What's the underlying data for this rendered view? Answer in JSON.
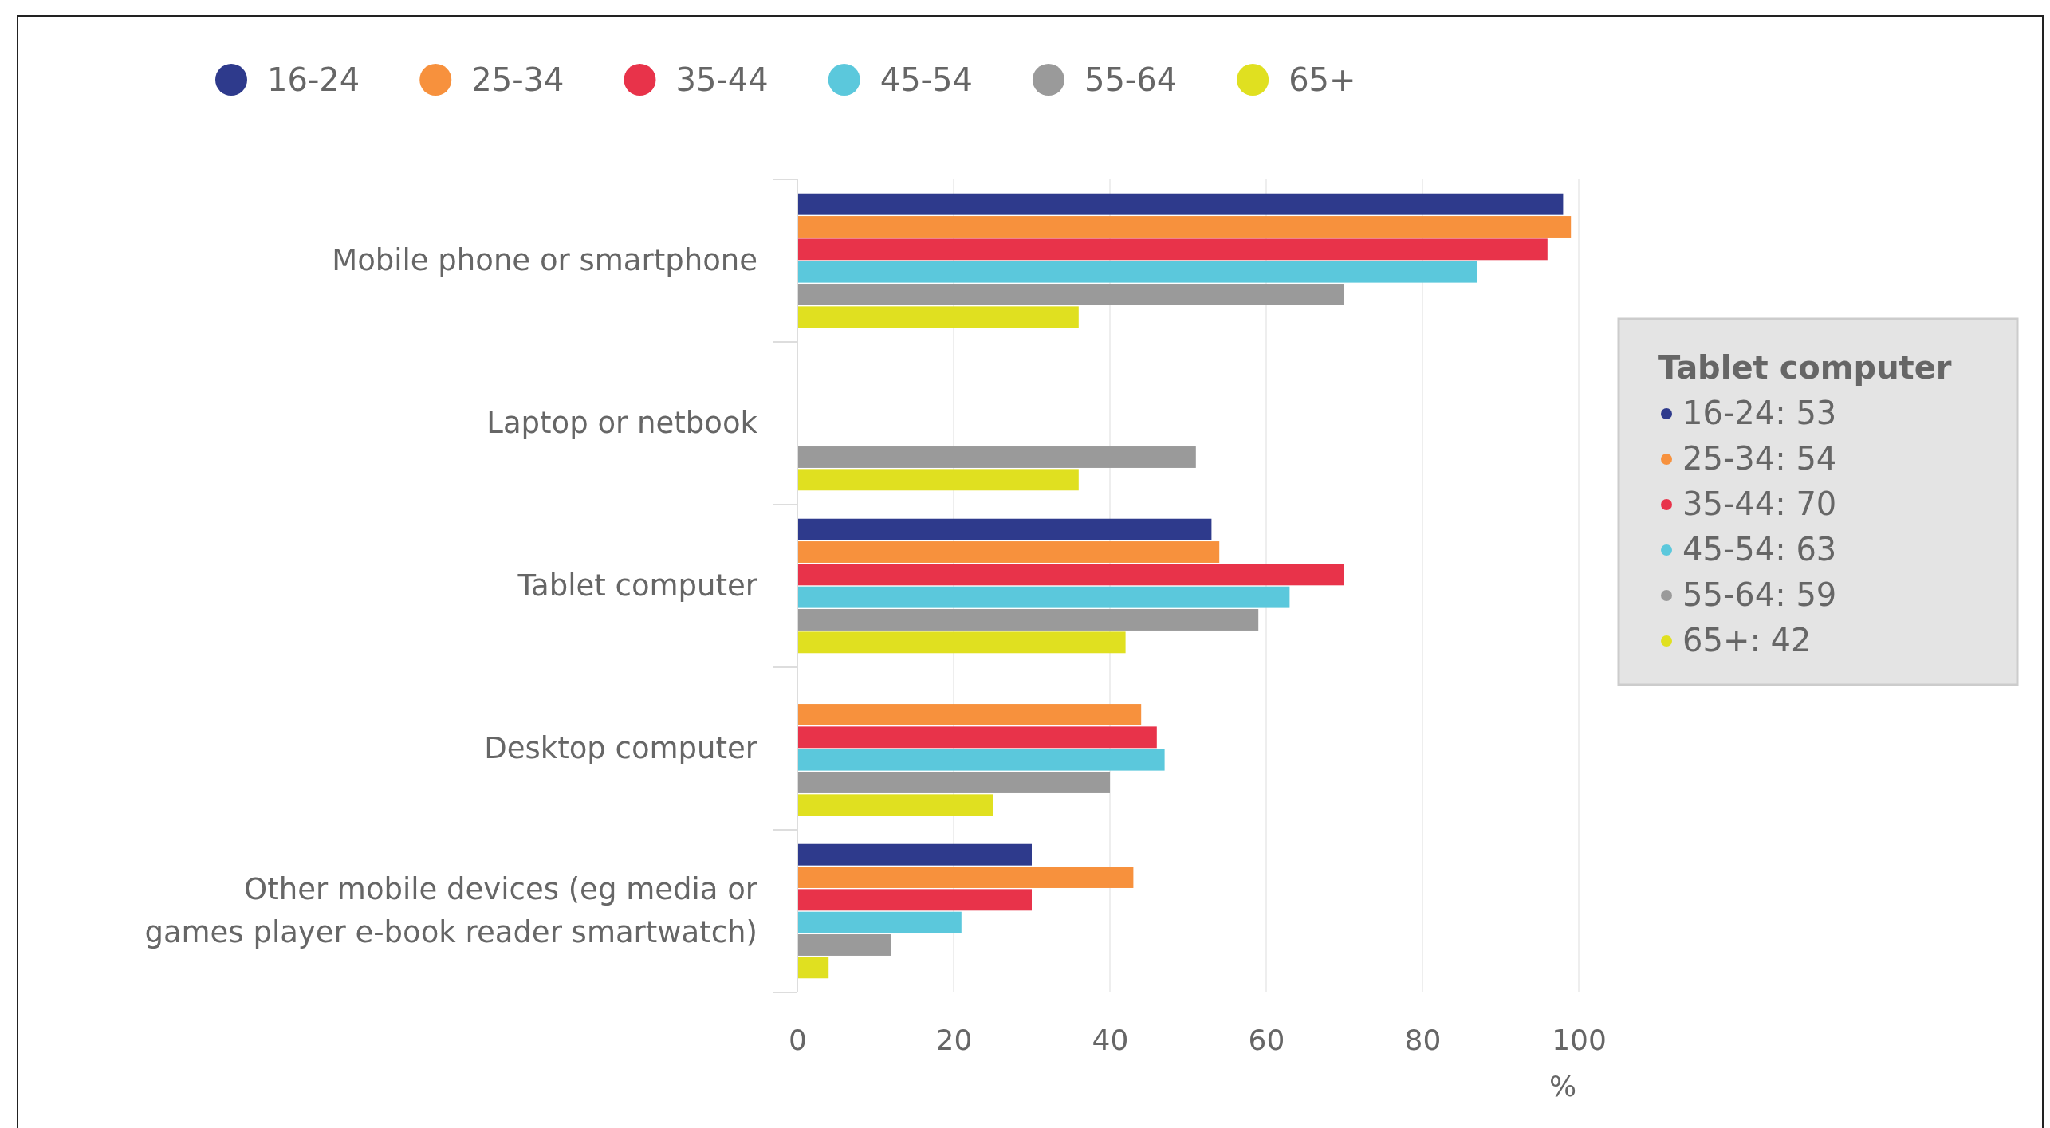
{
  "chart_data": {
    "type": "bar",
    "orientation": "horizontal",
    "categories": [
      "Mobile phone or smartphone",
      "Laptop or netbook",
      "Tablet computer",
      "Desktop computer",
      "Other mobile devices (eg media or games player e-book reader smartwatch)"
    ],
    "series": [
      {
        "name": "16-24",
        "color": "#2e3a8c",
        "values": [
          98,
          null,
          53,
          null,
          30
        ]
      },
      {
        "name": "25-34",
        "color": "#f7913d",
        "values": [
          99,
          null,
          54,
          44,
          43
        ]
      },
      {
        "name": "35-44",
        "color": "#e8334a",
        "values": [
          96,
          null,
          70,
          46,
          30
        ]
      },
      {
        "name": "45-54",
        "color": "#5bc8dc",
        "values": [
          87,
          null,
          63,
          47,
          21
        ]
      },
      {
        "name": "55-64",
        "color": "#9a9a9a",
        "values": [
          70,
          51,
          59,
          40,
          12
        ]
      },
      {
        "name": "65+",
        "color": "#e0e020",
        "values": [
          36,
          36,
          42,
          25,
          4
        ]
      }
    ],
    "xlim": [
      0,
      100
    ],
    "xticks": [
      0,
      20,
      40,
      60,
      80,
      100
    ],
    "xlabel": "%",
    "grid": "x",
    "legend": "top left",
    "annotations": [
      "Tablet computer",
      "16-24: 53",
      "25-34: 54",
      "35-44: 70",
      "45-54: 63",
      "55-64: 59",
      "65+: 42"
    ]
  }
}
